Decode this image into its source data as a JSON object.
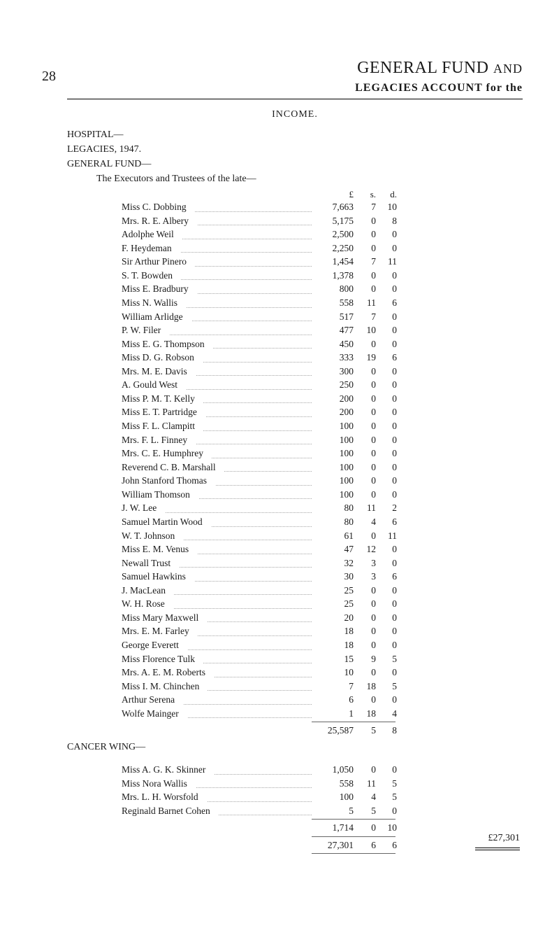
{
  "page_number": "28",
  "title_main": "GENERAL FUND",
  "title_suffix": "AND",
  "subtitle": "LEGACIES ACCOUNT for the",
  "income_label": "INCOME.",
  "section": {
    "hospital": "HOSPITAL—",
    "legacies": "LEGACIES, 1947.",
    "general_fund": "GENERAL FUND—",
    "executors": "The Executors and Trustees of the late—"
  },
  "col_headers": {
    "l": "£",
    "s": "s.",
    "d": "d."
  },
  "legacies_items": [
    {
      "name": "Miss C. Dobbing",
      "l": "7,663",
      "s": "7",
      "d": "10"
    },
    {
      "name": "Mrs. R. E. Albery",
      "l": "5,175",
      "s": "0",
      "d": "8"
    },
    {
      "name": "Adolphe Weil",
      "l": "2,500",
      "s": "0",
      "d": "0"
    },
    {
      "name": "F. Heydeman",
      "l": "2,250",
      "s": "0",
      "d": "0"
    },
    {
      "name": "Sir Arthur Pinero",
      "l": "1,454",
      "s": "7",
      "d": "11"
    },
    {
      "name": "S. T. Bowden",
      "l": "1,378",
      "s": "0",
      "d": "0"
    },
    {
      "name": "Miss E. Bradbury",
      "l": "800",
      "s": "0",
      "d": "0"
    },
    {
      "name": "Miss N. Wallis",
      "l": "558",
      "s": "11",
      "d": "6"
    },
    {
      "name": "William Arlidge",
      "l": "517",
      "s": "7",
      "d": "0"
    },
    {
      "name": "P. W. Filer",
      "l": "477",
      "s": "10",
      "d": "0"
    },
    {
      "name": "Miss E. G. Thompson",
      "l": "450",
      "s": "0",
      "d": "0"
    },
    {
      "name": "Miss D. G. Robson",
      "l": "333",
      "s": "19",
      "d": "6"
    },
    {
      "name": "Mrs. M. E. Davis",
      "l": "300",
      "s": "0",
      "d": "0"
    },
    {
      "name": "A. Gould West",
      "l": "250",
      "s": "0",
      "d": "0"
    },
    {
      "name": "Miss P. M. T. Kelly",
      "l": "200",
      "s": "0",
      "d": "0"
    },
    {
      "name": "Miss E. T. Partridge",
      "l": "200",
      "s": "0",
      "d": "0"
    },
    {
      "name": "Miss F. L. Clampitt",
      "l": "100",
      "s": "0",
      "d": "0"
    },
    {
      "name": "Mrs. F. L. Finney",
      "l": "100",
      "s": "0",
      "d": "0"
    },
    {
      "name": "Mrs. C. E. Humphrey",
      "l": "100",
      "s": "0",
      "d": "0"
    },
    {
      "name": "Reverend C. B. Marshall",
      "l": "100",
      "s": "0",
      "d": "0"
    },
    {
      "name": "John Stanford Thomas",
      "l": "100",
      "s": "0",
      "d": "0"
    },
    {
      "name": "William Thomson",
      "l": "100",
      "s": "0",
      "d": "0"
    },
    {
      "name": "J. W. Lee",
      "l": "80",
      "s": "11",
      "d": "2"
    },
    {
      "name": "Samuel Martin Wood",
      "l": "80",
      "s": "4",
      "d": "6"
    },
    {
      "name": "W. T. Johnson",
      "l": "61",
      "s": "0",
      "d": "11"
    },
    {
      "name": "Miss E. M. Venus",
      "l": "47",
      "s": "12",
      "d": "0"
    },
    {
      "name": "Newall Trust",
      "l": "32",
      "s": "3",
      "d": "0"
    },
    {
      "name": "Samuel Hawkins",
      "l": "30",
      "s": "3",
      "d": "6"
    },
    {
      "name": "J. MacLean",
      "l": "25",
      "s": "0",
      "d": "0"
    },
    {
      "name": "W. H. Rose",
      "l": "25",
      "s": "0",
      "d": "0"
    },
    {
      "name": "Miss Mary Maxwell",
      "l": "20",
      "s": "0",
      "d": "0"
    },
    {
      "name": "Mrs. E. M. Farley",
      "l": "18",
      "s": "0",
      "d": "0"
    },
    {
      "name": "George Everett",
      "l": "18",
      "s": "0",
      "d": "0"
    },
    {
      "name": "Miss Florence Tulk",
      "l": "15",
      "s": "9",
      "d": "5"
    },
    {
      "name": "Mrs. A. E. M. Roberts",
      "l": "10",
      "s": "0",
      "d": "0"
    },
    {
      "name": "Miss I. M. Chinchen",
      "l": "7",
      "s": "18",
      "d": "5"
    },
    {
      "name": "Arthur Serena",
      "l": "6",
      "s": "0",
      "d": "0"
    },
    {
      "name": "Wolfe Mainger",
      "l": "1",
      "s": "18",
      "d": "4"
    }
  ],
  "legacies_subtotal": {
    "l": "25,587",
    "s": "5",
    "d": "8"
  },
  "cancer_wing_label": "CANCER WING—",
  "cancer_items": [
    {
      "name": "Miss A. G. K. Skinner",
      "l": "1,050",
      "s": "0",
      "d": "0"
    },
    {
      "name": "Miss Nora Wallis",
      "l": "558",
      "s": "11",
      "d": "5"
    },
    {
      "name": "Mrs. L. H. Worsfold",
      "l": "100",
      "s": "4",
      "d": "5"
    },
    {
      "name": "Reginald Barnet Cohen",
      "l": "5",
      "s": "5",
      "d": "0"
    }
  ],
  "cancer_subtotal": {
    "l": "1,714",
    "s": "0",
    "d": "10"
  },
  "total": {
    "l": "27,301",
    "s": "6",
    "d": "6"
  },
  "grand_total_label": "£27,301"
}
